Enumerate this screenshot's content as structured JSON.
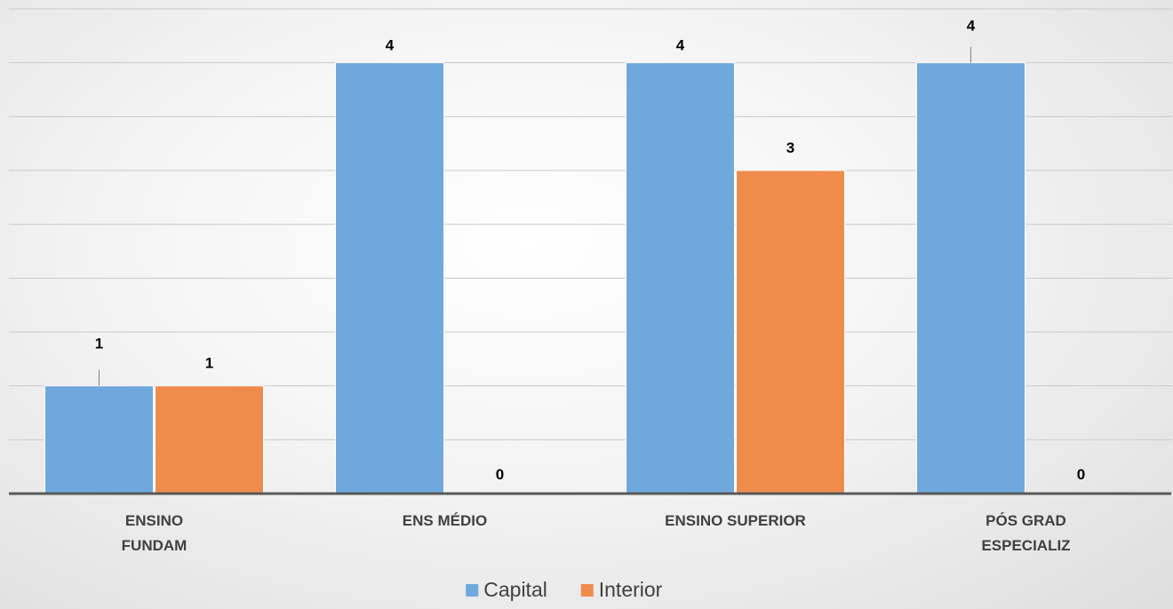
{
  "chart_data": {
    "type": "bar",
    "categories": [
      [
        "ENSINO",
        "FUNDAM"
      ],
      [
        "ENS MÉDIO"
      ],
      [
        "ENSINO SUPERIOR"
      ],
      [
        "PÓS GRAD",
        "ESPECIALIZ"
      ]
    ],
    "series": [
      {
        "name": "Capital",
        "values": [
          1,
          4,
          4,
          4
        ],
        "color": "#6fa8dc"
      },
      {
        "name": "Interior",
        "values": [
          1,
          0,
          3,
          0
        ],
        "color": "#ef8c4c"
      }
    ],
    "ylim": [
      0,
      4.5
    ],
    "grid": true,
    "data_labels": true,
    "legend_position": "bottom",
    "title": "",
    "xlabel": "",
    "ylabel": ""
  }
}
